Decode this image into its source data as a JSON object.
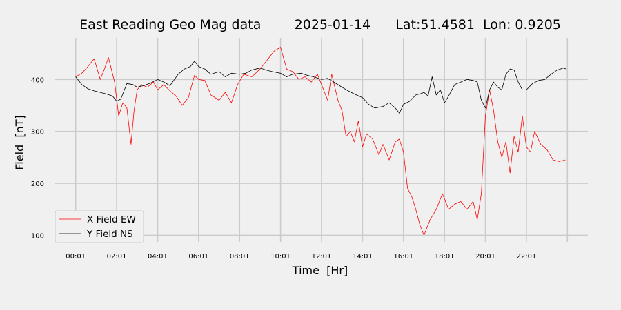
{
  "chart_data": {
    "type": "line",
    "title": "East Reading Geo Mag data        2025-01-14      Lat:51.4581  Lon: 0.9205",
    "xlabel": "Time  [Hr]",
    "ylabel": "Field  [nT]",
    "x_unit": "hours",
    "xlim": [
      -1,
      25
    ],
    "ylim": [
      86,
      480
    ],
    "x_ticks": [
      {
        "value": 0,
        "label": "00:01"
      },
      {
        "value": 2,
        "label": "02:01"
      },
      {
        "value": 4,
        "label": "04:01"
      },
      {
        "value": 6,
        "label": "06:01"
      },
      {
        "value": 8,
        "label": "08:01"
      },
      {
        "value": 10,
        "label": "10:01"
      },
      {
        "value": 12,
        "label": "12:01"
      },
      {
        "value": 14,
        "label": "14:01"
      },
      {
        "value": 16,
        "label": "16:01"
      },
      {
        "value": 18,
        "label": "18:01"
      },
      {
        "value": 20,
        "label": "20:01"
      },
      {
        "value": 22,
        "label": "22:01"
      },
      {
        "value": 24,
        "label": ""
      }
    ],
    "y_ticks": [
      100,
      200,
      300,
      400
    ],
    "grid": true,
    "legend_position": "lower-left",
    "series": [
      {
        "name": "X Field EW",
        "color": "#ff0000",
        "x": [
          0,
          0.3,
          0.6,
          0.9,
          1.2,
          1.4,
          1.6,
          1.9,
          2.1,
          2.3,
          2.5,
          2.7,
          2.85,
          3.0,
          3.2,
          3.5,
          3.8,
          4.0,
          4.3,
          4.6,
          4.9,
          5.2,
          5.5,
          5.8,
          6.0,
          6.3,
          6.6,
          7.0,
          7.3,
          7.6,
          7.9,
          8.2,
          8.6,
          9.0,
          9.4,
          9.7,
          10.0,
          10.3,
          10.6,
          10.9,
          11.2,
          11.5,
          11.8,
          12.0,
          12.3,
          12.5,
          12.8,
          13.0,
          13.2,
          13.4,
          13.6,
          13.8,
          14.0,
          14.2,
          14.5,
          14.8,
          15.0,
          15.3,
          15.6,
          15.8,
          16.0,
          16.2,
          16.4,
          16.6,
          16.8,
          17.0,
          17.3,
          17.6,
          17.9,
          18.2,
          18.5,
          18.8,
          19.1,
          19.4,
          19.6,
          19.8,
          20.0,
          20.2,
          20.4,
          20.6,
          20.8,
          21.0,
          21.2,
          21.4,
          21.6,
          21.8,
          22.0,
          22.2,
          22.4,
          22.7,
          23.0,
          23.3,
          23.6,
          23.9
        ],
        "y": [
          405,
          412,
          425,
          440,
          400,
          420,
          442,
          395,
          330,
          355,
          345,
          275,
          340,
          380,
          390,
          385,
          395,
          380,
          390,
          378,
          368,
          350,
          365,
          408,
          400,
          398,
          370,
          360,
          375,
          355,
          390,
          410,
          405,
          420,
          440,
          455,
          462,
          420,
          415,
          400,
          405,
          395,
          410,
          390,
          360,
          410,
          360,
          340,
          290,
          300,
          280,
          320,
          270,
          295,
          285,
          255,
          275,
          245,
          280,
          285,
          260,
          190,
          175,
          150,
          120,
          100,
          130,
          150,
          180,
          150,
          160,
          165,
          150,
          165,
          130,
          180,
          330,
          380,
          340,
          280,
          250,
          280,
          220,
          290,
          260,
          330,
          270,
          260,
          300,
          275,
          265,
          245,
          242,
          245
        ]
      },
      {
        "name": "Y Field NS",
        "color": "#000000",
        "x": [
          0,
          0.3,
          0.6,
          0.9,
          1.2,
          1.5,
          1.8,
          2.0,
          2.2,
          2.5,
          2.8,
          3.0,
          3.3,
          3.6,
          4.0,
          4.3,
          4.6,
          5.0,
          5.3,
          5.6,
          5.8,
          6.0,
          6.3,
          6.6,
          7.0,
          7.3,
          7.6,
          8.0,
          8.3,
          8.6,
          9.0,
          9.3,
          9.6,
          10.0,
          10.3,
          10.6,
          11.0,
          11.3,
          11.6,
          12.0,
          12.3,
          12.6,
          13.0,
          13.3,
          13.6,
          14.0,
          14.3,
          14.6,
          15.0,
          15.3,
          15.6,
          15.8,
          16.0,
          16.3,
          16.6,
          16.8,
          17.0,
          17.2,
          17.4,
          17.6,
          17.8,
          18.0,
          18.2,
          18.5,
          18.8,
          19.1,
          19.4,
          19.6,
          19.8,
          20.0,
          20.2,
          20.4,
          20.6,
          20.8,
          21.0,
          21.2,
          21.4,
          21.6,
          21.8,
          22.0,
          22.3,
          22.6,
          22.9,
          23.2,
          23.5,
          23.8,
          23.95
        ],
        "y": [
          405,
          390,
          382,
          378,
          375,
          372,
          368,
          358,
          362,
          392,
          390,
          385,
          388,
          392,
          400,
          395,
          388,
          410,
          420,
          425,
          435,
          425,
          420,
          410,
          415,
          405,
          412,
          410,
          412,
          418,
          422,
          418,
          415,
          412,
          405,
          410,
          412,
          408,
          405,
          400,
          402,
          395,
          385,
          378,
          372,
          365,
          352,
          345,
          348,
          355,
          345,
          335,
          352,
          358,
          370,
          372,
          375,
          368,
          405,
          370,
          380,
          355,
          368,
          390,
          395,
          400,
          398,
          395,
          360,
          345,
          380,
          395,
          385,
          380,
          410,
          420,
          418,
          395,
          380,
          380,
          392,
          398,
          400,
          410,
          418,
          422,
          420
        ]
      }
    ]
  }
}
